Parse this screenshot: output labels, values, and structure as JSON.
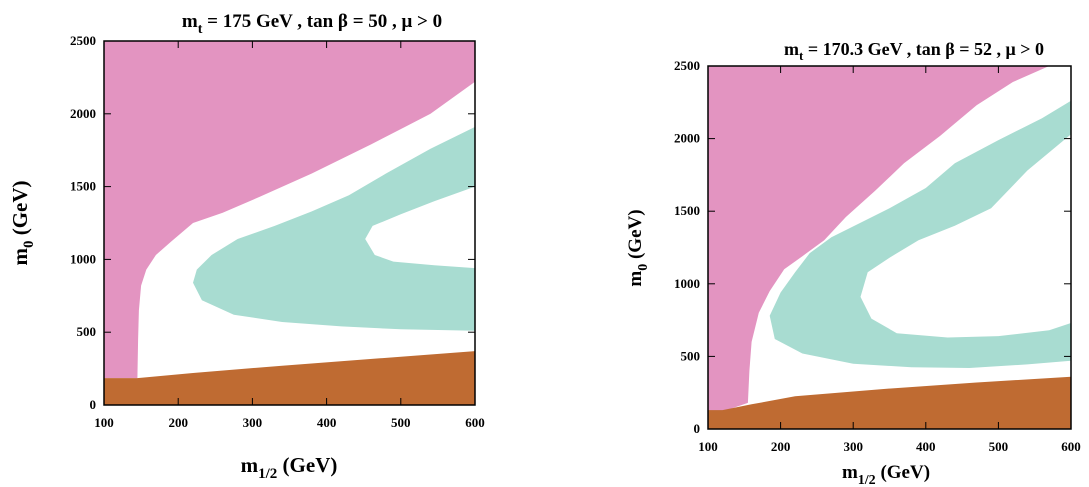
{
  "chart_data": [
    {
      "type": "area",
      "title": {
        "main": "m",
        "sub": "t",
        "rest": " = 175 GeV , tan β = 50 ,  μ > 0"
      },
      "xlabel": {
        "main": "m",
        "sub": "1/2",
        "rest": " (GeV)"
      },
      "ylabel": {
        "main": "m",
        "sub": "0",
        "rest": " (GeV)"
      },
      "xlim": [
        100,
        600
      ],
      "ylim": [
        0,
        2500
      ],
      "xticks": [
        100,
        200,
        300,
        400,
        500,
        600
      ],
      "yticks": [
        0,
        500,
        1000,
        1500,
        2000,
        2500
      ],
      "regions": [
        {
          "name": "pink",
          "color": "#e394c1",
          "polygon": [
            [
              100,
              2500
            ],
            [
              600,
              2500
            ],
            [
              600,
              2220
            ],
            [
              540,
              2000
            ],
            [
              460,
              1790
            ],
            [
              380,
              1590
            ],
            [
              310,
              1430
            ],
            [
              260,
              1320
            ],
            [
              220,
              1250
            ],
            [
              190,
              1120
            ],
            [
              170,
              1030
            ],
            [
              157,
              930
            ],
            [
              150,
              820
            ],
            [
              147,
              650
            ],
            [
              146,
              450
            ],
            [
              145,
              185
            ],
            [
              100,
              185
            ]
          ]
        },
        {
          "name": "teal",
          "color": "#a8dcd1",
          "polygon": [
            [
              600,
              1910
            ],
            [
              540,
              1760
            ],
            [
              480,
              1590
            ],
            [
              430,
              1440
            ],
            [
              380,
              1330
            ],
            [
              330,
              1230
            ],
            [
              280,
              1140
            ],
            [
              245,
              1030
            ],
            [
              225,
              930
            ],
            [
              220,
              840
            ],
            [
              232,
              720
            ],
            [
              275,
              620
            ],
            [
              340,
              570
            ],
            [
              420,
              540
            ],
            [
              500,
              520
            ],
            [
              600,
              510
            ],
            [
              600,
              940
            ],
            [
              545,
              960
            ],
            [
              490,
              985
            ],
            [
              465,
              1030
            ],
            [
              452,
              1140
            ],
            [
              462,
              1230
            ],
            [
              500,
              1310
            ],
            [
              545,
              1400
            ],
            [
              600,
              1500
            ]
          ]
        },
        {
          "name": "brown",
          "color": "#bf6b32",
          "polygon": [
            [
              100,
              0
            ],
            [
              600,
              0
            ],
            [
              600,
              370
            ],
            [
              470,
              320
            ],
            [
              340,
              270
            ],
            [
              220,
              220
            ],
            [
              145,
              185
            ],
            [
              100,
              185
            ]
          ]
        }
      ]
    },
    {
      "type": "area",
      "title": {
        "main": "m",
        "sub": "t",
        "rest": " = 170.3 GeV , tan β = 52 ,  μ > 0"
      },
      "xlabel": {
        "main": "m",
        "sub": "1/2",
        "rest": " (GeV)"
      },
      "ylabel": {
        "main": "m",
        "sub": "0",
        "rest": " (GeV)"
      },
      "xlim": [
        100,
        600
      ],
      "ylim": [
        0,
        2500
      ],
      "xticks": [
        100,
        200,
        300,
        400,
        500,
        600
      ],
      "yticks": [
        0,
        500,
        1000,
        1500,
        2000,
        2500
      ],
      "regions": [
        {
          "name": "pink",
          "color": "#e394c1",
          "polygon": [
            [
              100,
              2500
            ],
            [
              570,
              2500
            ],
            [
              520,
              2390
            ],
            [
              470,
              2230
            ],
            [
              420,
              2020
            ],
            [
              370,
              1830
            ],
            [
              330,
              1640
            ],
            [
              290,
              1460
            ],
            [
              260,
              1300
            ],
            [
              230,
              1190
            ],
            [
              205,
              1100
            ],
            [
              185,
              950
            ],
            [
              170,
              800
            ],
            [
              160,
              600
            ],
            [
              157,
              400
            ],
            [
              155,
              180
            ],
            [
              120,
              120
            ],
            [
              100,
              120
            ]
          ]
        },
        {
          "name": "teal",
          "color": "#a8dcd1",
          "polygon": [
            [
              600,
              2260
            ],
            [
              560,
              2140
            ],
            [
              500,
              1990
            ],
            [
              440,
              1830
            ],
            [
              400,
              1660
            ],
            [
              350,
              1520
            ],
            [
              310,
              1420
            ],
            [
              270,
              1320
            ],
            [
              240,
              1210
            ],
            [
              220,
              1080
            ],
            [
              200,
              940
            ],
            [
              185,
              780
            ],
            [
              192,
              620
            ],
            [
              230,
              520
            ],
            [
              300,
              450
            ],
            [
              380,
              425
            ],
            [
              460,
              420
            ],
            [
              540,
              445
            ],
            [
              600,
              470
            ],
            [
              600,
              730
            ],
            [
              570,
              680
            ],
            [
              500,
              640
            ],
            [
              430,
              630
            ],
            [
              360,
              660
            ],
            [
              325,
              760
            ],
            [
              310,
              910
            ],
            [
              320,
              1080
            ],
            [
              350,
              1180
            ],
            [
              390,
              1300
            ],
            [
              440,
              1400
            ],
            [
              490,
              1520
            ],
            [
              540,
              1780
            ],
            [
              600,
              2030
            ]
          ]
        },
        {
          "name": "brown",
          "color": "#bf6b32",
          "polygon": [
            [
              100,
              0
            ],
            [
              600,
              0
            ],
            [
              600,
              360
            ],
            [
              470,
              320
            ],
            [
              340,
              275
            ],
            [
              220,
              225
            ],
            [
              160,
              170
            ],
            [
              120,
              130
            ],
            [
              100,
              130
            ]
          ]
        }
      ]
    }
  ]
}
